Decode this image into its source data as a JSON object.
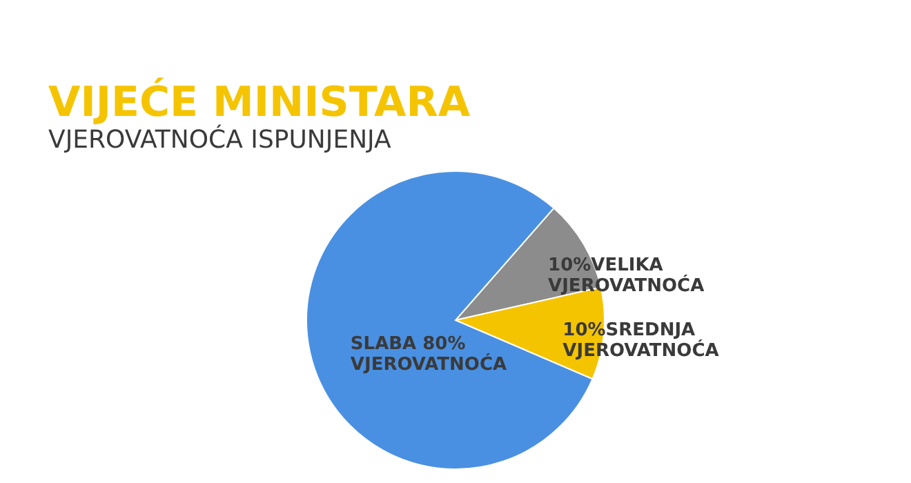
{
  "chart_data": {
    "type": "pie",
    "title": "VIJEĆE MINISTARA",
    "subtitle": "VJEROVATNOĆA ISPUNJENJA",
    "categories": [
      "10%VELIKA\nVJEROVATNOĆA",
      "10%SREDNJA\nVJEROVATNOĆA",
      "SLABA 80%\nVJEROVATNOĆA"
    ],
    "values": [
      10,
      10,
      80
    ],
    "colors": [
      "#8c8c8c",
      "#f5c400",
      "#4a90e2"
    ],
    "legend": false
  }
}
